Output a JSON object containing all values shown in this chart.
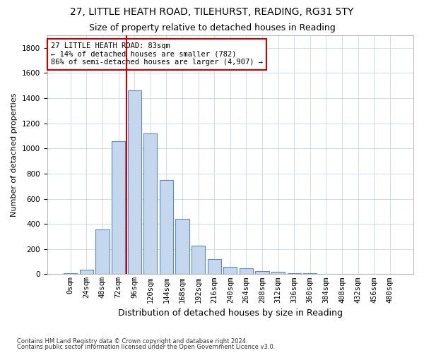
{
  "title1": "27, LITTLE HEATH ROAD, TILEHURST, READING, RG31 5TY",
  "title2": "Size of property relative to detached houses in Reading",
  "xlabel": "Distribution of detached houses by size in Reading",
  "ylabel": "Number of detached properties",
  "footnote1": "Contains HM Land Registry data © Crown copyright and database right 2024.",
  "footnote2": "Contains public sector information licensed under the Open Government Licence v3.0.",
  "bin_labels": [
    "0sqm",
    "24sqm",
    "48sqm",
    "72sqm",
    "96sqm",
    "120sqm",
    "144sqm",
    "168sqm",
    "192sqm",
    "216sqm",
    "240sqm",
    "264sqm",
    "288sqm",
    "312sqm",
    "336sqm",
    "360sqm",
    "384sqm",
    "408sqm",
    "432sqm",
    "456sqm",
    "480sqm"
  ],
  "bar_values": [
    10,
    35,
    355,
    1060,
    1460,
    1120,
    750,
    440,
    225,
    120,
    60,
    45,
    25,
    18,
    10,
    5,
    3,
    2,
    1,
    1,
    0
  ],
  "bar_color": "#c5d7ed",
  "bar_edge_color": "#5b8ac5",
  "vline_x": 3.5,
  "vline_color": "#cc0000",
  "annotation_text": "27 LITTLE HEATH ROAD: 83sqm\n← 14% of detached houses are smaller (782)\n86% of semi-detached houses are larger (4,907) →",
  "annotation_box_color": "#cc0000",
  "annotation_bg_color": "white",
  "ylim": [
    0,
    1900
  ],
  "yticks": [
    0,
    200,
    400,
    600,
    800,
    1000,
    1200,
    1400,
    1600,
    1800
  ],
  "grid_color": "#c8d4e8",
  "title1_fontsize": 10,
  "title2_fontsize": 9,
  "xlabel_fontsize": 9,
  "ylabel_fontsize": 8,
  "tick_fontsize": 7.5,
  "annotation_fontsize": 7.5,
  "footnote_fontsize": 6
}
